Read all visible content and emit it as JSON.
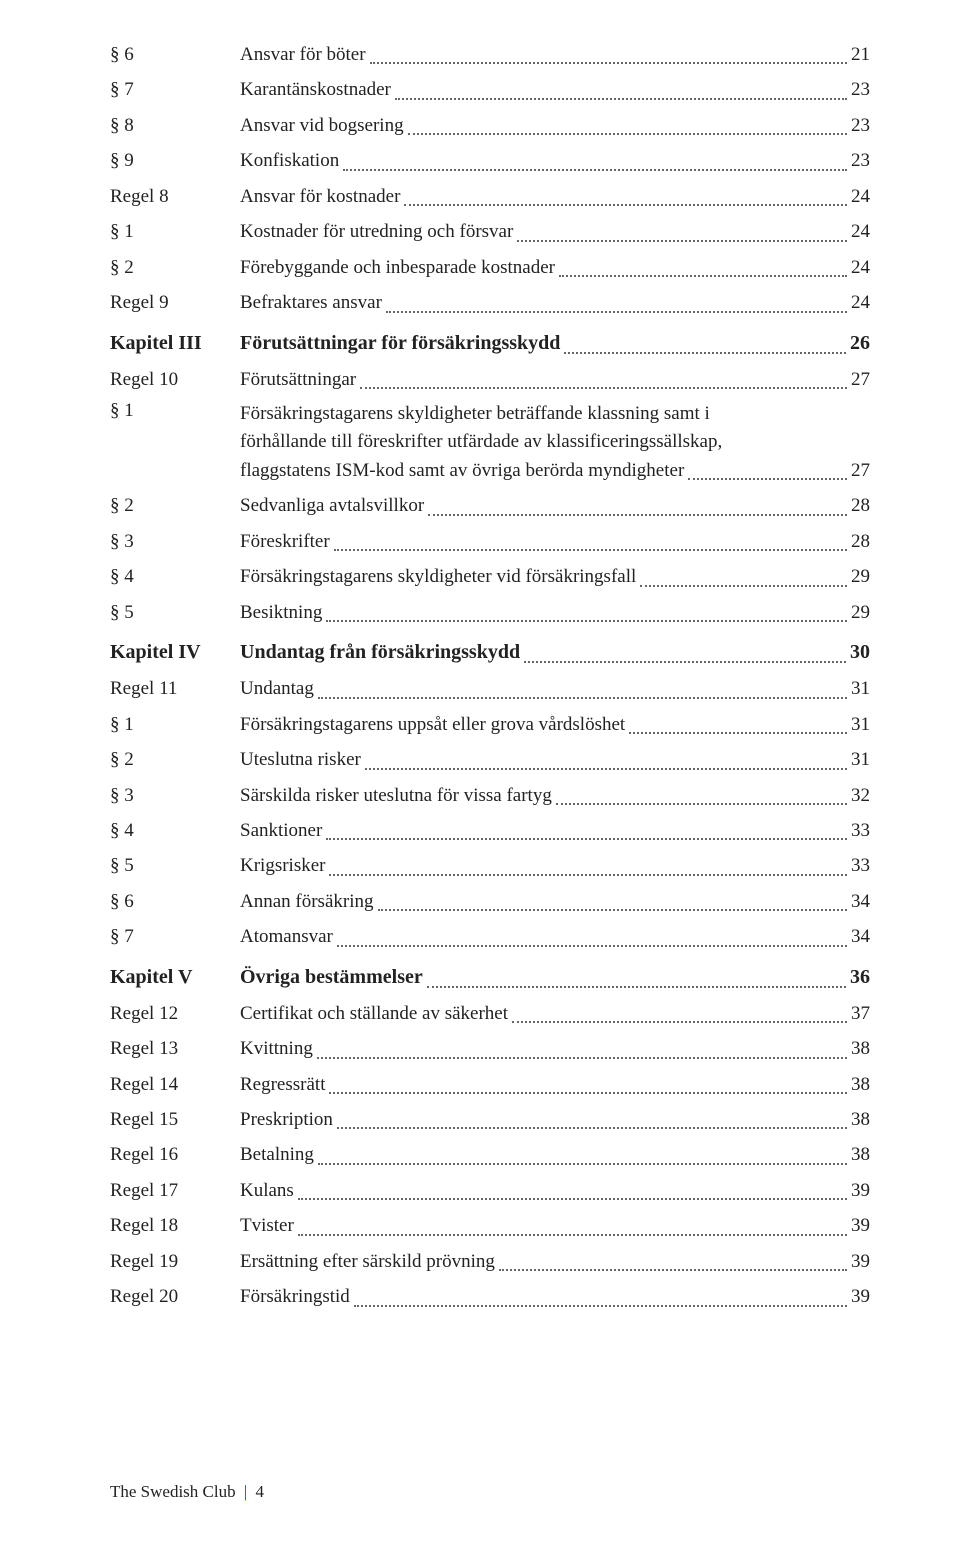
{
  "toc": {
    "rows": [
      {
        "type": "item",
        "label": "§ 6",
        "text": "Ansvar för böter",
        "page": "21"
      },
      {
        "type": "item",
        "label": "§ 7",
        "text": "Karantänskostnader",
        "page": "23"
      },
      {
        "type": "item",
        "label": "§ 8",
        "text": "Ansvar vid bogsering",
        "page": "23"
      },
      {
        "type": "item",
        "label": "§ 9",
        "text": "Konfiskation",
        "page": "23"
      },
      {
        "type": "item",
        "label": "Regel 8",
        "text": "Ansvar för kostnader",
        "page": "24"
      },
      {
        "type": "item",
        "label": "§ 1",
        "text": "Kostnader för utredning och försvar",
        "page": "24"
      },
      {
        "type": "item",
        "label": "§ 2",
        "text": "Förebyggande och inbesparade kostnader",
        "page": "24"
      },
      {
        "type": "item",
        "label": "Regel 9",
        "text": "Befraktares ansvar",
        "page": "24"
      },
      {
        "type": "chapter",
        "gap": true,
        "label": "Kapitel III",
        "text": "Förutsättningar för försäkringsskydd",
        "page": "26"
      },
      {
        "type": "item",
        "label": "Regel 10",
        "text": "Förutsättningar",
        "page": "27"
      },
      {
        "type": "wrap",
        "label": "§ 1",
        "lines": [
          "Försäkringstagarens skyldigheter beträffande klassning samt i",
          "förhållande till föreskrifter utfärdade av klassificeringssällskap,"
        ],
        "lastLine": "flaggstatens ISM-kod samt av övriga berörda myndigheter",
        "page": "27"
      },
      {
        "type": "item",
        "label": "§ 2",
        "text": "Sedvanliga avtalsvillkor",
        "page": "28"
      },
      {
        "type": "item",
        "label": "§ 3",
        "text": "Föreskrifter",
        "page": "28"
      },
      {
        "type": "item",
        "label": "§ 4",
        "text": "Försäkringstagarens skyldigheter vid försäkringsfall",
        "page": "29"
      },
      {
        "type": "item",
        "label": "§ 5",
        "text": "Besiktning",
        "page": "29"
      },
      {
        "type": "chapter",
        "gap": true,
        "label": "Kapitel IV",
        "text": "Undantag från försäkringsskydd",
        "page": "30"
      },
      {
        "type": "item",
        "label": "Regel 11",
        "text": "Undantag",
        "page": "31"
      },
      {
        "type": "item",
        "label": "§ 1",
        "text": "Försäkringstagarens uppsåt eller grova vårdslöshet",
        "page": "31"
      },
      {
        "type": "item",
        "label": "§ 2",
        "text": "Uteslutna risker",
        "page": "31"
      },
      {
        "type": "item",
        "label": "§ 3",
        "text": "Särskilda risker uteslutna för vissa fartyg",
        "page": "32"
      },
      {
        "type": "item",
        "label": "§ 4",
        "text": "Sanktioner",
        "page": "33"
      },
      {
        "type": "item",
        "label": "§ 5",
        "text": "Krigsrisker",
        "page": "33"
      },
      {
        "type": "item",
        "label": "§ 6",
        "text": "Annan försäkring",
        "page": "34"
      },
      {
        "type": "item",
        "label": "§ 7",
        "text": "Atomansvar",
        "page": "34"
      },
      {
        "type": "chapter",
        "gap": true,
        "label": "Kapitel V",
        "text": "Övriga bestämmelser",
        "page": "36"
      },
      {
        "type": "item",
        "label": "Regel 12",
        "text": "Certifikat och ställande av säkerhet",
        "page": "37"
      },
      {
        "type": "item",
        "label": "Regel 13",
        "text": "Kvittning",
        "page": "38"
      },
      {
        "type": "item",
        "label": "Regel 14",
        "text": "Regressrätt",
        "page": "38"
      },
      {
        "type": "item",
        "label": "Regel 15",
        "text": "Preskription",
        "page": "38"
      },
      {
        "type": "item",
        "label": "Regel 16",
        "text": "Betalning",
        "page": "38"
      },
      {
        "type": "item",
        "label": "Regel 17",
        "text": "Kulans",
        "page": "39"
      },
      {
        "type": "item",
        "label": "Regel 18",
        "text": "Tvister",
        "page": "39"
      },
      {
        "type": "item",
        "label": "Regel 19",
        "text": "Ersättning efter särskild prövning",
        "page": "39"
      },
      {
        "type": "item",
        "label": "Regel 20",
        "text": "Försäkringstid",
        "page": "39"
      }
    ]
  },
  "footer": {
    "brand": "The Swedish Club",
    "page": "4"
  },
  "colors": {
    "text": "#222222",
    "leader": "#666666",
    "divider": "#1a4aa0",
    "background": "#ffffff"
  }
}
